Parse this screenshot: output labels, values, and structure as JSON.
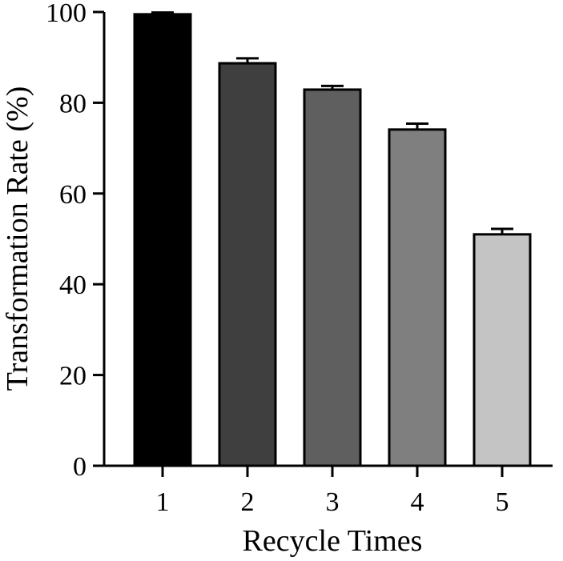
{
  "chart_data": {
    "type": "bar",
    "categories": [
      "1",
      "2",
      "3",
      "4",
      "5"
    ],
    "values": [
      99.5,
      88.7,
      82.9,
      74.1,
      51.0
    ],
    "error": [
      0.4,
      1.1,
      0.8,
      1.3,
      1.2
    ],
    "xlabel": "Recycle Times",
    "ylabel": "Transformation Rate (%)",
    "ylim": [
      0,
      100
    ],
    "yticks": [
      0,
      20,
      40,
      60,
      80,
      100
    ],
    "grid": false,
    "legend": "none",
    "bar_colors": [
      "#000000",
      "#3f3f3f",
      "#5f5f5f",
      "#7f7f7f",
      "#c4c4c4"
    ]
  }
}
